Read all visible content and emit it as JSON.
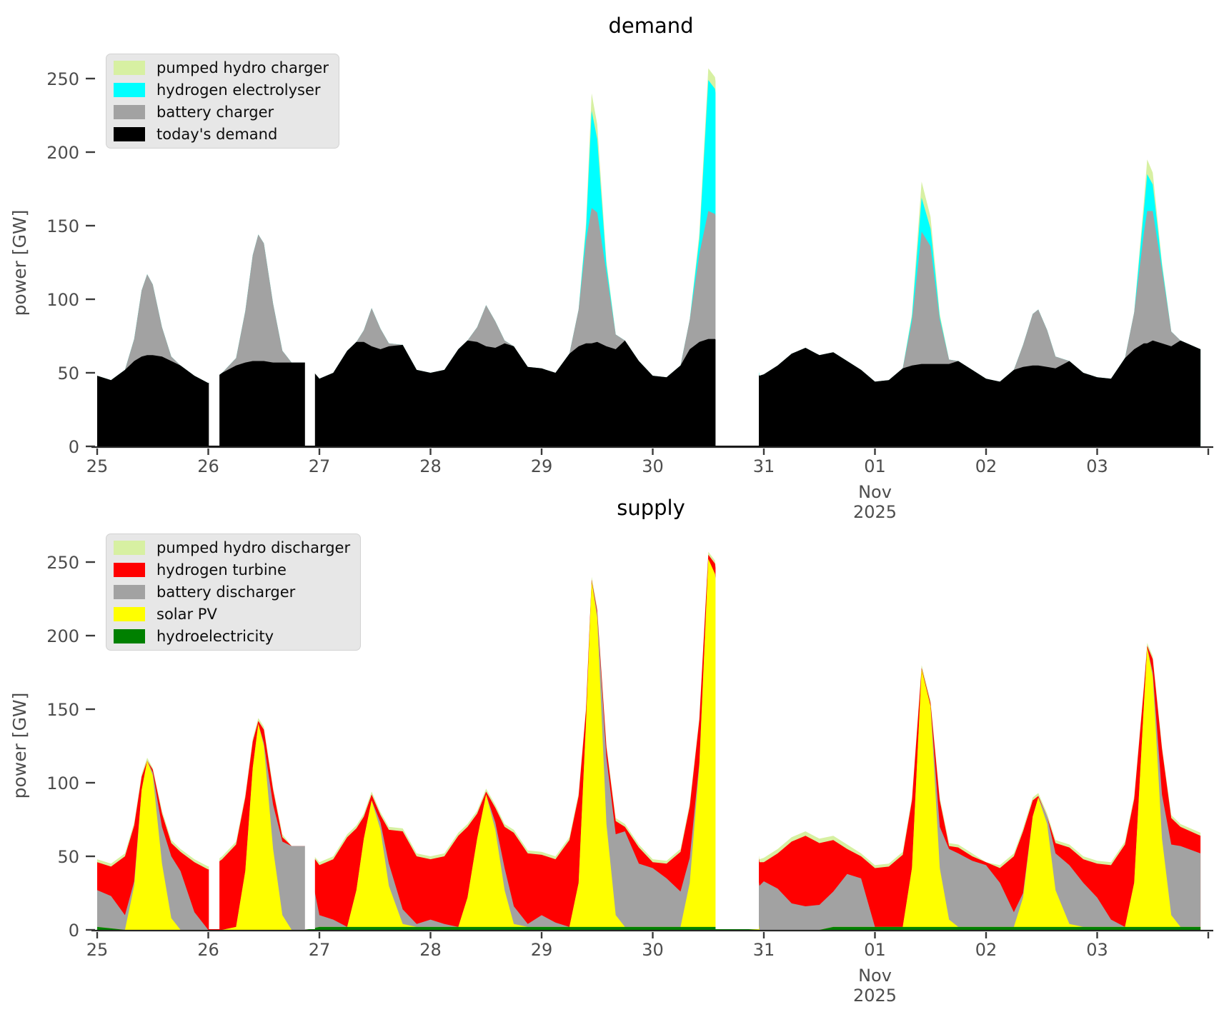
{
  "style": {
    "background": "#ffffff",
    "axis_text_color": "#4d4d4d",
    "tick_color": "#3a3a3a",
    "spine_color": "#262626",
    "legend_bg": "#e5e5e5"
  },
  "x_axis": {
    "unit": "days since 2025-10-25 00:00",
    "tick_labels": [
      {
        "t": 0,
        "label": "25"
      },
      {
        "t": 1,
        "label": "26"
      },
      {
        "t": 2,
        "label": "27"
      },
      {
        "t": 3,
        "label": "28"
      },
      {
        "t": 4,
        "label": "29"
      },
      {
        "t": 5,
        "label": "30"
      },
      {
        "t": 6,
        "label": "31"
      },
      {
        "t": 7,
        "label": "01"
      },
      {
        "t": 8,
        "label": "02"
      },
      {
        "t": 9,
        "label": "03"
      },
      {
        "t": 10,
        "label": ""
      }
    ],
    "month_label": {
      "t": 7,
      "lines": [
        "Nov",
        "2025"
      ]
    },
    "data_gaps": [
      [
        1.005,
        1.1
      ],
      [
        1.87,
        1.96
      ],
      [
        5.565,
        5.955
      ]
    ]
  },
  "x_days": [
    0,
    0.125,
    0.25,
    0.333,
    0.4,
    0.45,
    0.5,
    0.583,
    0.667,
    0.75,
    0.875,
    1,
    1.125,
    1.25,
    1.333,
    1.4,
    1.45,
    1.5,
    1.583,
    1.667,
    1.75,
    1.875,
    2,
    2.125,
    2.25,
    2.333,
    2.4,
    2.47,
    2.55,
    2.625,
    2.75,
    2.875,
    3,
    3.125,
    3.25,
    3.333,
    3.42,
    3.5,
    3.583,
    3.667,
    3.75,
    3.875,
    4,
    4.125,
    4.25,
    4.333,
    4.4,
    4.45,
    4.5,
    4.583,
    4.667,
    4.75,
    4.875,
    5,
    5.125,
    5.25,
    5.333,
    5.42,
    5.5,
    5.56,
    5.96,
    6,
    6.125,
    6.25,
    6.375,
    6.5,
    6.625,
    6.75,
    6.875,
    7,
    7.125,
    7.25,
    7.333,
    7.42,
    7.5,
    7.583,
    7.667,
    7.75,
    7.875,
    8,
    8.125,
    8.25,
    8.333,
    8.42,
    8.47,
    8.55,
    8.625,
    8.75,
    8.875,
    9,
    9.125,
    9.25,
    9.333,
    9.42,
    9.45,
    9.5,
    9.583,
    9.667,
    9.75,
    9.93
  ],
  "chart_data": [
    {
      "type": "area",
      "stacked": true,
      "title": "demand",
      "ylabel": "power [GW]",
      "ylim": [
        0,
        270
      ],
      "yticks": [
        0,
        50,
        100,
        150,
        200,
        250
      ],
      "legend_position": "upper left",
      "series": [
        {
          "id": "todays-demand",
          "label": "today's demand",
          "color": "#000000",
          "values": [
            48,
            45,
            52,
            58,
            61,
            62,
            62,
            61,
            58,
            55,
            48,
            43,
            50,
            55,
            57,
            58,
            58,
            58,
            57,
            57,
            57,
            57,
            46,
            50,
            65,
            71,
            71,
            68,
            66,
            68,
            69,
            52,
            50,
            52,
            66,
            72,
            71,
            68,
            67,
            70,
            68,
            54,
            53,
            50,
            63,
            68,
            70,
            70,
            71,
            68,
            66,
            72,
            58,
            48,
            47,
            55,
            66,
            71,
            73,
            73,
            48,
            49,
            55,
            63,
            67,
            62,
            64,
            58,
            52,
            44,
            45,
            53,
            55,
            56,
            56,
            56,
            56,
            58,
            52,
            46,
            44,
            52,
            54,
            55,
            55,
            54,
            53,
            58,
            50,
            47,
            46,
            60,
            66,
            70,
            70,
            72,
            70,
            68,
            72,
            66
          ]
        },
        {
          "id": "battery-charger",
          "label": "battery charger",
          "color": "#a2a2a2",
          "values": [
            0,
            0,
            0,
            15,
            45,
            55,
            48,
            20,
            3,
            0,
            0,
            0,
            0,
            5,
            35,
            72,
            86,
            80,
            40,
            8,
            0,
            0,
            0,
            0,
            0,
            0,
            8,
            26,
            14,
            2,
            0,
            0,
            0,
            0,
            0,
            0,
            10,
            28,
            18,
            2,
            0,
            0,
            0,
            0,
            0,
            25,
            70,
            92,
            88,
            50,
            10,
            0,
            0,
            0,
            0,
            0,
            20,
            60,
            87,
            85,
            0,
            0,
            0,
            0,
            0,
            0,
            0,
            0,
            0,
            0,
            0,
            0,
            30,
            90,
            80,
            30,
            3,
            0,
            0,
            0,
            0,
            0,
            15,
            35,
            38,
            25,
            8,
            0,
            0,
            0,
            0,
            0,
            25,
            75,
            90,
            88,
            50,
            10,
            0,
            0
          ]
        },
        {
          "id": "hydrogen-electrolyser",
          "label": "hydrogen electrolyser",
          "color": "#00ffff",
          "values": [
            0,
            0,
            0,
            0,
            0,
            0,
            0,
            0,
            0,
            0,
            0,
            0,
            0,
            0,
            0,
            0,
            0,
            0,
            0,
            0,
            0,
            0,
            0,
            0,
            0,
            0,
            0,
            0,
            0,
            0,
            0,
            0,
            0,
            0,
            0,
            0,
            0,
            0,
            0,
            0,
            0,
            0,
            0,
            0,
            0,
            0,
            8,
            66,
            50,
            5,
            0,
            0,
            0,
            0,
            0,
            0,
            0,
            10,
            89,
            85,
            0,
            0,
            0,
            0,
            0,
            0,
            0,
            0,
            0,
            0,
            0,
            0,
            3,
            23,
            12,
            2,
            0,
            0,
            0,
            0,
            0,
            0,
            0,
            0,
            0,
            0,
            0,
            0,
            0,
            0,
            0,
            0,
            0,
            15,
            25,
            18,
            3,
            0,
            0,
            0
          ]
        },
        {
          "id": "pumped-hydro-charger",
          "label": "pumped hydro charger",
          "color": "#d7f0a2",
          "values": [
            0,
            0,
            0,
            0,
            0,
            0,
            0,
            0,
            0,
            0,
            0,
            0,
            0,
            0,
            0,
            0,
            0,
            0,
            0,
            0,
            0,
            0,
            0,
            0,
            0,
            0,
            0,
            0,
            0,
            0,
            0,
            0,
            0,
            0,
            0,
            0,
            0,
            0,
            0,
            0,
            0,
            0,
            0,
            0,
            0,
            0,
            4,
            12,
            10,
            3,
            0,
            0,
            0,
            0,
            0,
            0,
            0,
            4,
            8,
            8,
            0,
            0,
            0,
            0,
            0,
            0,
            0,
            0,
            0,
            0,
            0,
            0,
            2,
            11,
            8,
            2,
            0,
            0,
            0,
            0,
            0,
            0,
            0,
            0,
            0,
            0,
            0,
            0,
            0,
            0,
            0,
            0,
            0,
            6,
            10,
            8,
            2,
            0,
            0,
            0
          ]
        }
      ]
    },
    {
      "type": "area",
      "stacked": true,
      "title": "supply",
      "ylabel": "power [GW]",
      "ylim": [
        0,
        270
      ],
      "yticks": [
        0,
        50,
        100,
        150,
        200,
        250
      ],
      "legend_position": "upper left",
      "series": [
        {
          "id": "hydroelectricity",
          "label": "hydroelectricity",
          "color": "#008000",
          "values": [
            2,
            1,
            0,
            0,
            0,
            0,
            0,
            0,
            0,
            0,
            0,
            0,
            0,
            0,
            0,
            0,
            0,
            0,
            0,
            0,
            0,
            0,
            2,
            2,
            2,
            2,
            2,
            2,
            2,
            2,
            2,
            2,
            2,
            2,
            2,
            2,
            2,
            2,
            2,
            2,
            2,
            2,
            2,
            2,
            2,
            2,
            2,
            2,
            2,
            2,
            2,
            2,
            2,
            2,
            2,
            2,
            2,
            2,
            2,
            2,
            0,
            0,
            0,
            0,
            0,
            0,
            2,
            2,
            2,
            2,
            2,
            2,
            2,
            2,
            2,
            2,
            2,
            2,
            2,
            2,
            2,
            2,
            2,
            2,
            2,
            2,
            2,
            2,
            2,
            2,
            2,
            2,
            2,
            2,
            2,
            2,
            2,
            2,
            2,
            2
          ]
        },
        {
          "id": "solar-pv",
          "label": "solar PV",
          "color": "#ffff00",
          "values": [
            0,
            0,
            0,
            30,
            95,
            115,
            105,
            45,
            8,
            0,
            0,
            0,
            0,
            2,
            40,
            110,
            140,
            125,
            55,
            10,
            0,
            0,
            0,
            0,
            0,
            25,
            60,
            86,
            66,
            28,
            2,
            0,
            0,
            0,
            0,
            20,
            60,
            90,
            66,
            25,
            2,
            0,
            0,
            0,
            0,
            30,
            140,
            235,
            210,
            70,
            8,
            0,
            0,
            0,
            0,
            0,
            30,
            110,
            250,
            240,
            0,
            0,
            0,
            0,
            0,
            0,
            0,
            0,
            0,
            0,
            0,
            0,
            40,
            175,
            150,
            40,
            5,
            0,
            0,
            0,
            0,
            0,
            20,
            75,
            88,
            70,
            25,
            2,
            0,
            0,
            0,
            0,
            30,
            150,
            190,
            170,
            60,
            8,
            0,
            0
          ]
        },
        {
          "id": "battery-discharger",
          "label": "battery discharger",
          "color": "#a2a2a2",
          "values": [
            25,
            22,
            10,
            3,
            0,
            0,
            2,
            25,
            42,
            40,
            12,
            0,
            0,
            0,
            0,
            0,
            0,
            2,
            30,
            50,
            57,
            57,
            8,
            5,
            0,
            0,
            0,
            0,
            5,
            15,
            10,
            2,
            5,
            2,
            0,
            0,
            0,
            0,
            5,
            15,
            12,
            2,
            8,
            3,
            0,
            0,
            0,
            0,
            3,
            45,
            55,
            65,
            43,
            40,
            33,
            24,
            17,
            2,
            0,
            0,
            30,
            33,
            28,
            18,
            16,
            17,
            24,
            36,
            33,
            0,
            0,
            0,
            0,
            0,
            0,
            28,
            48,
            50,
            45,
            42,
            30,
            10,
            3,
            0,
            0,
            5,
            25,
            40,
            30,
            20,
            5,
            0,
            0,
            0,
            0,
            3,
            30,
            48,
            55,
            50
          ]
        },
        {
          "id": "hydrogen-turbine",
          "label": "hydrogen turbine",
          "color": "#ff0000",
          "values": [
            19,
            20,
            40,
            38,
            9,
            0,
            2,
            9,
            9,
            13,
            34,
            41,
            48,
            56,
            50,
            18,
            2,
            9,
            10,
            3,
            0,
            0,
            34,
            41,
            61,
            42,
            15,
            4,
            5,
            23,
            53,
            46,
            41,
            46,
            62,
            48,
            17,
            2,
            10,
            28,
            50,
            48,
            41,
            43,
            59,
            59,
            8,
            1,
            2,
            7,
            9,
            3,
            11,
            4,
            10,
            27,
            35,
            29,
            3,
            7,
            16,
            13,
            24,
            42,
            48,
            42,
            35,
            17,
            15,
            40,
            41,
            49,
            46,
            1,
            2,
            18,
            2,
            4,
            3,
            2,
            10,
            38,
            42,
            11,
            1,
            0,
            7,
            12,
            16,
            23,
            37,
            56,
            57,
            12,
            1,
            9,
            31,
            18,
            13,
            12
          ]
        },
        {
          "id": "pumped-hydro-discharger",
          "label": "pumped hydro discharger",
          "color": "#d7f0a2",
          "values": [
            2,
            2,
            2,
            2,
            2,
            2,
            1,
            2,
            2,
            2,
            2,
            2,
            2,
            2,
            2,
            2,
            2,
            2,
            2,
            2,
            0,
            0,
            2,
            2,
            2,
            2,
            2,
            2,
            2,
            2,
            2,
            2,
            2,
            2,
            2,
            2,
            2,
            2,
            2,
            2,
            2,
            2,
            2,
            2,
            2,
            2,
            2,
            2,
            2,
            2,
            2,
            2,
            2,
            2,
            2,
            2,
            2,
            2,
            2,
            2,
            2,
            3,
            3,
            3,
            3,
            3,
            3,
            3,
            2,
            2,
            2,
            2,
            2,
            2,
            2,
            2,
            2,
            2,
            2,
            0,
            2,
            2,
            2,
            2,
            2,
            2,
            2,
            2,
            2,
            2,
            2,
            2,
            2,
            2,
            2,
            2,
            2,
            2,
            2,
            2
          ]
        }
      ]
    }
  ]
}
